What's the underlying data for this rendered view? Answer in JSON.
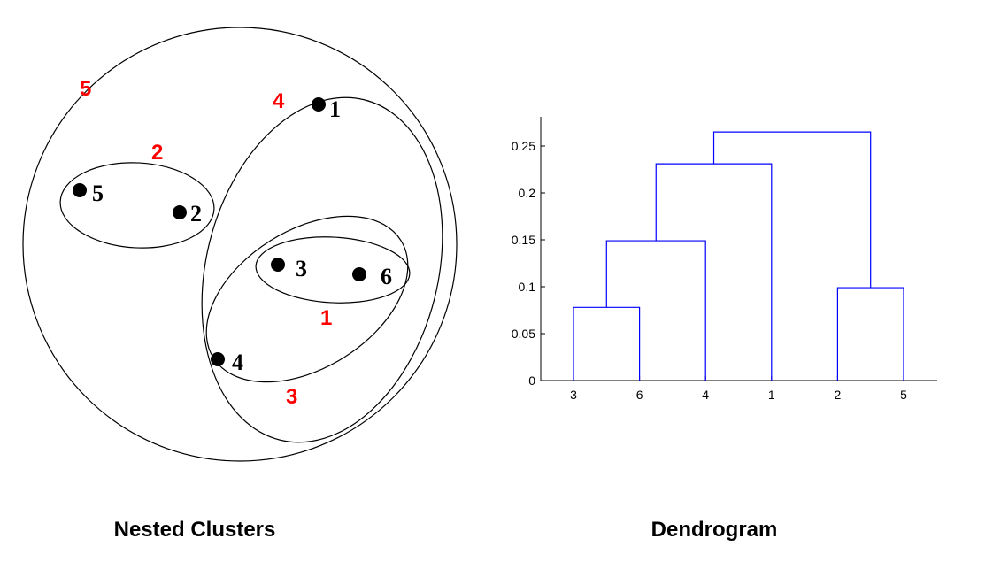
{
  "nested_clusters": {
    "caption": "Nested Clusters",
    "points": [
      {
        "id": "1",
        "label": "1"
      },
      {
        "id": "2",
        "label": "2"
      },
      {
        "id": "3",
        "label": "3"
      },
      {
        "id": "4",
        "label": "4"
      },
      {
        "id": "5",
        "label": "5"
      },
      {
        "id": "6",
        "label": "6"
      }
    ],
    "cluster_labels": [
      "1",
      "2",
      "3",
      "4",
      "5"
    ],
    "cluster_label_color": "#ff0000",
    "point_color": "#000000"
  },
  "chart_data": {
    "type": "dendrogram",
    "caption": "Dendrogram",
    "title": "",
    "xlabel": "",
    "ylabel": "",
    "leaf_order": [
      "3",
      "6",
      "4",
      "1",
      "2",
      "5"
    ],
    "merges": [
      {
        "cluster": 1,
        "members": [
          "3",
          "6"
        ],
        "height": 0.078
      },
      {
        "cluster": 2,
        "members": [
          "2",
          "5"
        ],
        "height": 0.099
      },
      {
        "cluster": 3,
        "members": [
          "3",
          "6",
          "4"
        ],
        "height": 0.149
      },
      {
        "cluster": 4,
        "members": [
          "3",
          "6",
          "4",
          "1"
        ],
        "height": 0.231
      },
      {
        "cluster": 5,
        "members": [
          "3",
          "6",
          "4",
          "1",
          "2",
          "5"
        ],
        "height": 0.265
      }
    ],
    "y_ticks": [
      "0",
      "0.05",
      "0.1",
      "0.15",
      "0.2",
      "0.25"
    ],
    "y_tick_values": [
      0,
      0.05,
      0.1,
      0.15,
      0.2,
      0.25
    ],
    "ylim": [
      0,
      0.28
    ],
    "line_color": "#0000ff"
  }
}
